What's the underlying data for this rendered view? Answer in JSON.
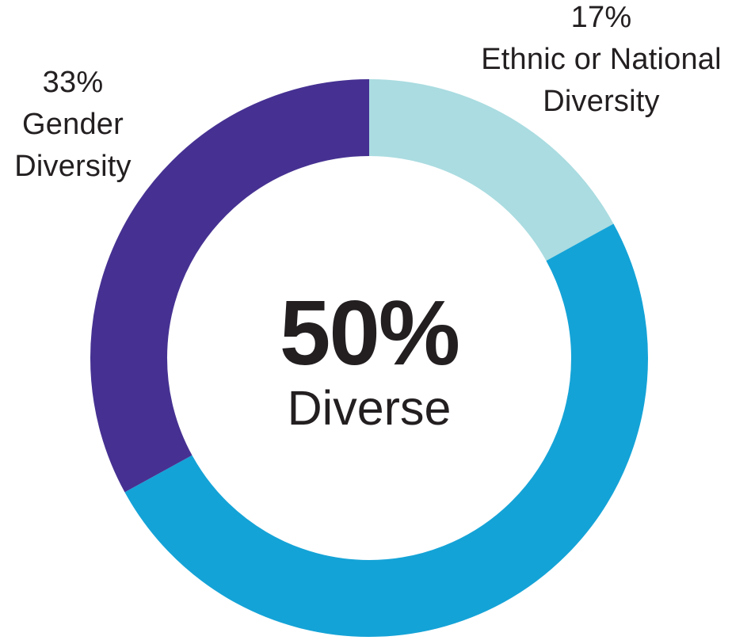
{
  "chart_data": {
    "type": "pie",
    "subtype": "donut",
    "title": "",
    "direction": "clockwise",
    "start_angle_deg": 0,
    "slices": [
      {
        "name": "ethnic-or-national-diversity",
        "label": "Ethnic or National Diversity",
        "value": 17,
        "color": "#AADCE1"
      },
      {
        "name": "remainder",
        "label": "",
        "value": 50,
        "color": "#14A3D7"
      },
      {
        "name": "gender-diversity",
        "label": "Gender Diversity",
        "value": 33,
        "color": "#463192"
      }
    ],
    "center_value": "50%",
    "center_label": "Diverse",
    "callout_gender": "33%\nGender\nDiversity",
    "callout_ethnic": "17%\nEthnic or National\nDiversity",
    "text_color": "#231F20",
    "background_color": "#FFFFFF",
    "legend": "none",
    "grid": "off"
  }
}
